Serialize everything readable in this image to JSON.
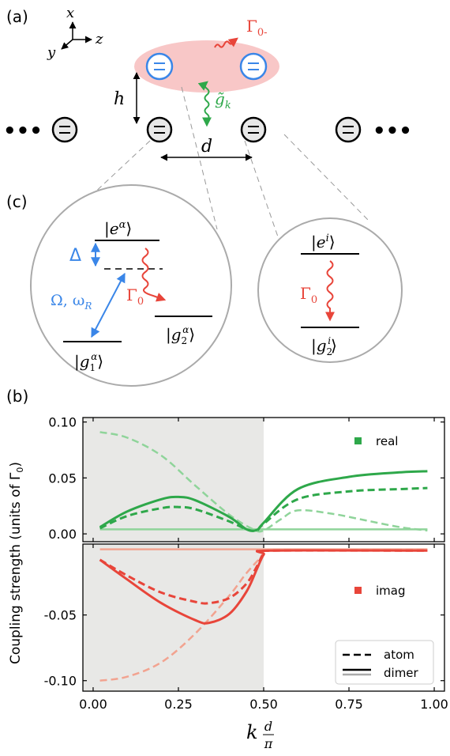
{
  "panels": {
    "a_label": "(a)",
    "c_label": "(c)",
    "b_label": "(b)"
  },
  "panel_a": {
    "axes": {
      "x": "x",
      "y": "y",
      "z": "z"
    },
    "gamma_label": "Γ",
    "gamma_sub": "0-",
    "coupling_label": "g̃",
    "coupling_sub": "k",
    "height_label": "h",
    "distance_label": "d",
    "ellipsis": "•••",
    "colors": {
      "upper_atom": "#3a86e8",
      "emission": "#e8453a",
      "coupling": "#2ea84a",
      "ellipse": "#f8c7c7"
    }
  },
  "panel_c": {
    "left": {
      "excited": "|e",
      "excited_sup": "α",
      "detuning": "Δ",
      "drive": "Ω, ω",
      "drive_sub": "R",
      "decay": "Γ",
      "decay_sub": "0",
      "ground1": "|g",
      "ground1_sub": "1",
      "ground1_sup": "α",
      "ground2": "|g",
      "ground2_sub": "2",
      "ground2_sup": "α"
    },
    "right": {
      "excited": "|e",
      "excited_sup": "i",
      "decay": "Γ",
      "decay_sub": "0",
      "ground2": "|g",
      "ground2_sub": "2",
      "ground2_sup": "i"
    },
    "ket": "⟩"
  },
  "chart_data": {
    "type": "line",
    "ylabel": "Coupling strength (units of Γ",
    "ylabel_sub": "0",
    "ylabel_end": ")",
    "xlabel": "k",
    "xlabel_frac_num": "d",
    "xlabel_frac_den": "π",
    "xlim": [
      -0.03,
      1.03
    ],
    "xticks": [
      "0.00",
      "0.25",
      "0.50",
      "0.75",
      "1.00"
    ],
    "shaded_region": [
      0,
      0.5
    ],
    "top": {
      "ylim": [
        -0.007,
        0.104
      ],
      "yticks": [
        "0.10",
        "0.05",
        "0.00"
      ],
      "legend": "real",
      "legend_color": "#2ea84a",
      "series": [
        {
          "style": "dimer-solid",
          "x": [
            0.02,
            0.1,
            0.2,
            0.25,
            0.3,
            0.4,
            0.45,
            0.48,
            0.5,
            0.6,
            0.75,
            0.9,
            0.98
          ],
          "values": [
            0.006,
            0.02,
            0.031,
            0.033,
            0.03,
            0.015,
            0.004,
            0.0035,
            0.01,
            0.04,
            0.051,
            0.055,
            0.056
          ]
        },
        {
          "style": "atom-dashed",
          "x": [
            0.02,
            0.1,
            0.2,
            0.25,
            0.3,
            0.4,
            0.45,
            0.48,
            0.5,
            0.6,
            0.75,
            0.9,
            0.98
          ],
          "values": [
            0.005,
            0.016,
            0.023,
            0.024,
            0.022,
            0.011,
            0.004,
            0.003,
            0.009,
            0.031,
            0.038,
            0.04,
            0.041
          ]
        },
        {
          "style": "atom-light-dashed",
          "x": [
            0.02,
            0.1,
            0.2,
            0.3,
            0.4,
            0.47,
            0.5,
            0.55,
            0.6,
            0.7,
            0.8,
            0.9,
            0.98
          ],
          "values": [
            0.091,
            0.086,
            0.07,
            0.043,
            0.017,
            0.004,
            0.003,
            0.013,
            0.021,
            0.018,
            0.012,
            0.006,
            0.003
          ]
        },
        {
          "style": "dimer-light-solid",
          "x": [
            0.02,
            0.98
          ],
          "values": [
            0.004,
            0.004
          ]
        }
      ]
    },
    "bottom": {
      "ylim": [
        -0.108,
        0.004
      ],
      "yticks": [
        "-0.05",
        "-0.10"
      ],
      "legend": "imag",
      "legend_color": "#e8453a",
      "series": [
        {
          "style": "dimer-solid",
          "x": [
            0.02,
            0.1,
            0.2,
            0.3,
            0.34,
            0.4,
            0.45,
            0.48,
            0.5,
            0.52,
            0.98
          ],
          "values": [
            -0.008,
            -0.023,
            -0.041,
            -0.054,
            -0.056,
            -0.049,
            -0.032,
            -0.015,
            -0.004,
            -0.001,
            -0.001
          ]
        },
        {
          "style": "atom-dashed",
          "x": [
            0.02,
            0.1,
            0.2,
            0.3,
            0.34,
            0.4,
            0.45,
            0.48,
            0.5,
            0.52,
            0.98
          ],
          "values": [
            -0.008,
            -0.02,
            -0.033,
            -0.04,
            -0.041,
            -0.037,
            -0.026,
            -0.013,
            -0.003,
            -0.001,
            -0.001
          ]
        },
        {
          "style": "atom-light-dashed",
          "x": [
            0.02,
            0.1,
            0.2,
            0.3,
            0.4,
            0.45,
            0.5,
            0.52,
            0.98
          ],
          "values": [
            -0.1,
            -0.097,
            -0.086,
            -0.064,
            -0.035,
            -0.018,
            -0.004,
            -0.001,
            -0.001
          ]
        },
        {
          "style": "dimer-light-solid",
          "x": [
            0.02,
            0.98
          ],
          "values": [
            0.0,
            0.0
          ]
        }
      ]
    },
    "legend_styles": [
      "atom",
      "dimer"
    ]
  }
}
